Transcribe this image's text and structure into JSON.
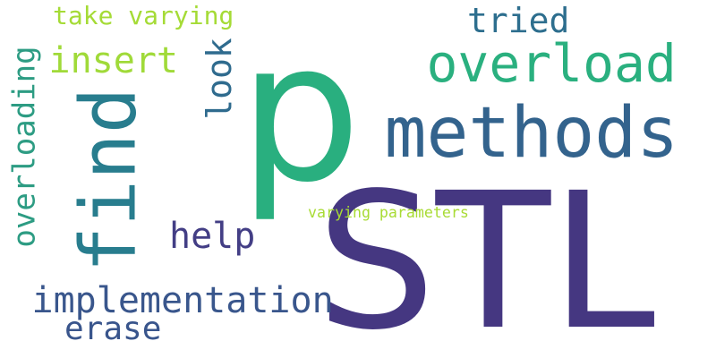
{
  "words": [
    {
      "id": "stl",
      "text": "STL",
      "color": "#453781",
      "orientation": "horizontal"
    },
    {
      "id": "p",
      "text": "p",
      "color": "#29af7f",
      "orientation": "horizontal"
    },
    {
      "id": "methods",
      "text": "methods",
      "color": "#33638d",
      "orientation": "horizontal"
    },
    {
      "id": "find",
      "text": "find",
      "color": "#287d8e",
      "orientation": "vertical"
    },
    {
      "id": "overload",
      "text": "overload",
      "color": "#2ab07f",
      "orientation": "horizontal"
    },
    {
      "id": "implementation",
      "text": "implementation",
      "color": "#39568c",
      "orientation": "horizontal"
    },
    {
      "id": "overloading",
      "text": "overloading",
      "color": "#2d9c83",
      "orientation": "vertical"
    },
    {
      "id": "insert",
      "text": "insert",
      "color": "#a0da39",
      "orientation": "horizontal"
    },
    {
      "id": "tried",
      "text": "tried",
      "color": "#2d6e8e",
      "orientation": "horizontal"
    },
    {
      "id": "erase",
      "text": "erase",
      "color": "#39558c",
      "orientation": "horizontal"
    },
    {
      "id": "help",
      "text": "help",
      "color": "#433e85",
      "orientation": "horizontal"
    },
    {
      "id": "look",
      "text": "look",
      "color": "#2f6b8e",
      "orientation": "vertical"
    },
    {
      "id": "take-varying",
      "text": "take varying",
      "color": "#a5db36",
      "orientation": "horizontal"
    },
    {
      "id": "varying-parameters",
      "text": "varying parameters",
      "color": "#a8db34",
      "orientation": "horizontal"
    }
  ]
}
